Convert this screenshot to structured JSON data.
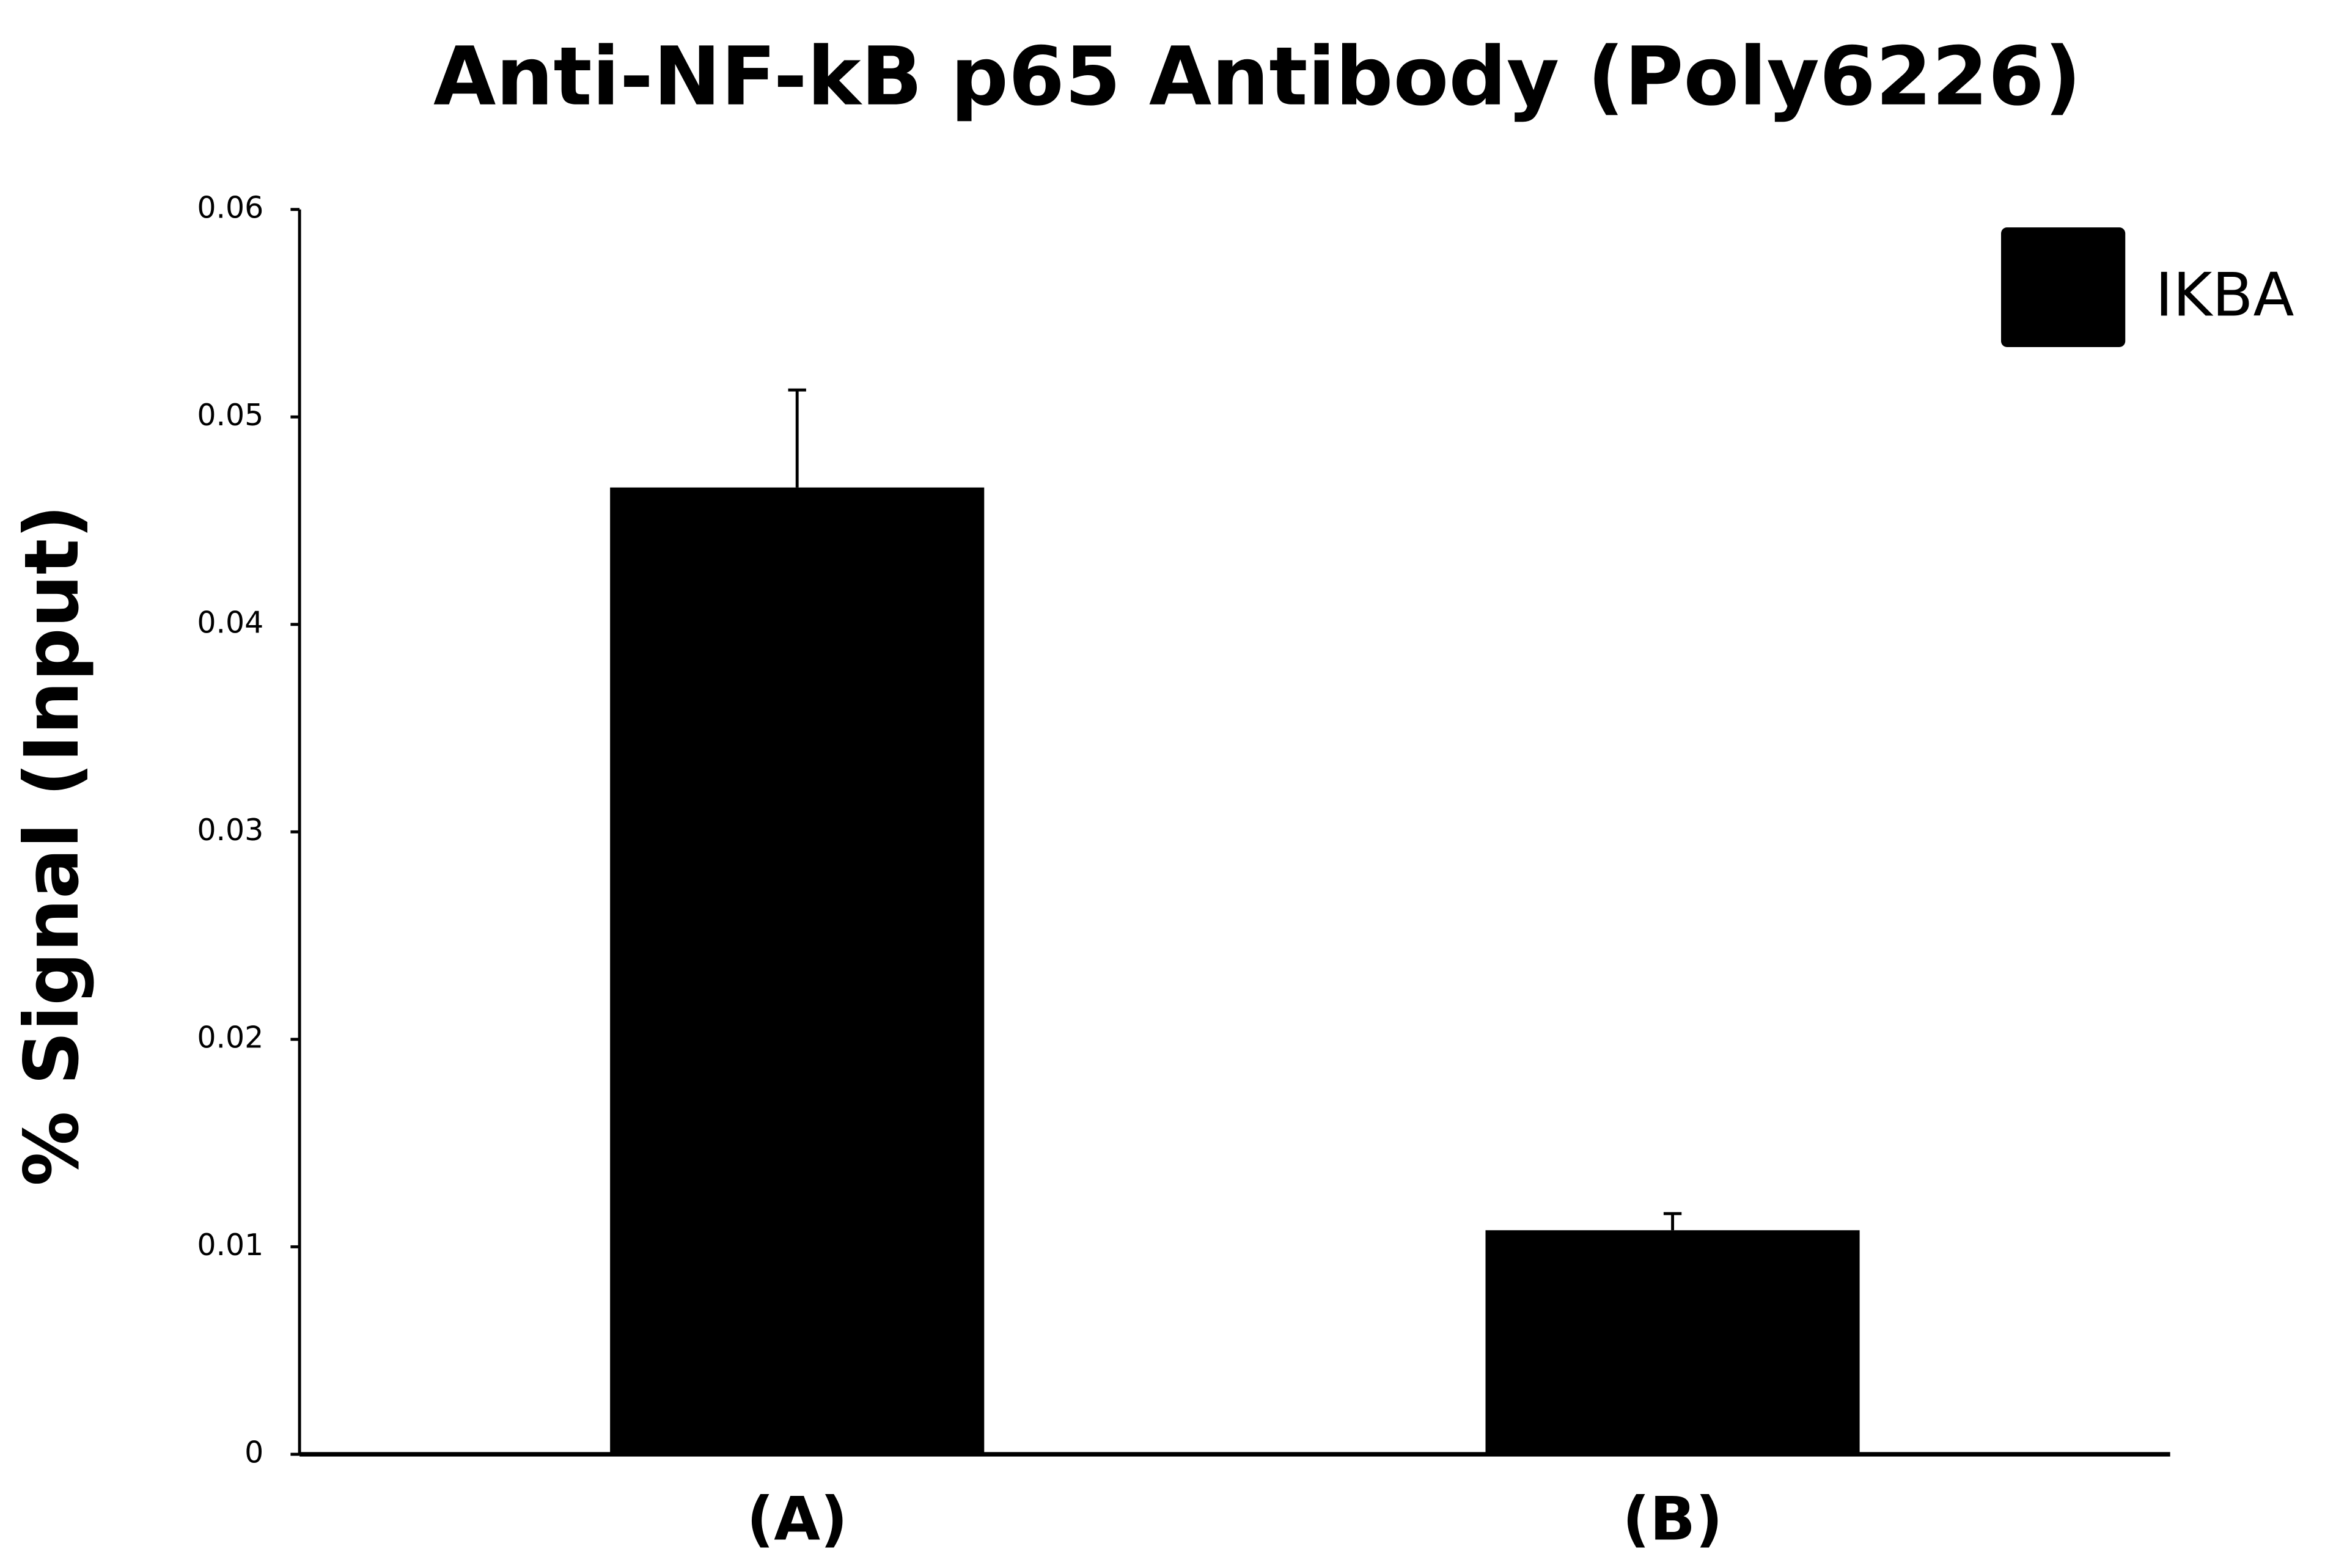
{
  "chart_data": {
    "type": "bar",
    "title": "Anti-NF-kB p65 Antibody (Poly6226)",
    "y_label": "% Signal (Input)",
    "categories": [
      "(A)",
      "(B)"
    ],
    "series": [
      {
        "name": "IKBA",
        "color": "#000000",
        "values": [
          0.0466,
          0.0108
        ],
        "errors": [
          0.0047,
          0.0008
        ]
      }
    ],
    "ylim": [
      0,
      0.06
    ],
    "yticks": [
      0,
      0.01,
      0.02,
      0.03,
      0.04,
      0.05,
      0.06
    ],
    "grid": false,
    "legend": "top-right"
  }
}
